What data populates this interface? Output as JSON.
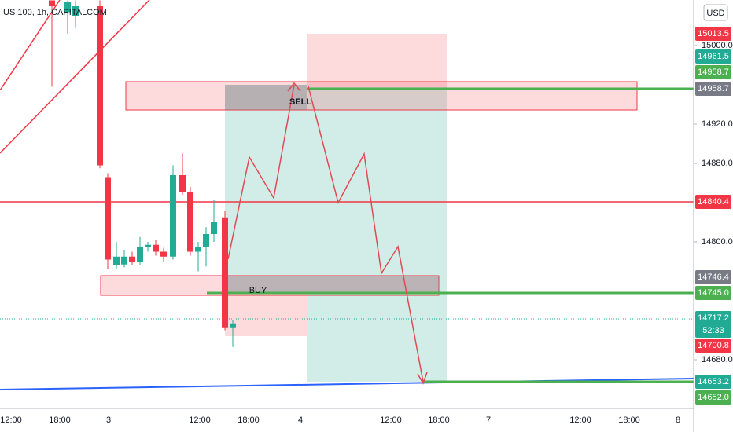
{
  "header": {
    "title": "US 100, 1h, CAPITALCOM"
  },
  "price_axis": {
    "currency": "USD",
    "ticks": [
      {
        "value": 15000,
        "label": "15000.0"
      },
      {
        "value": 14920,
        "label": "14920.0"
      },
      {
        "value": 14880,
        "label": "14880.0"
      },
      {
        "value": 14800,
        "label": "14800.0"
      },
      {
        "value": 14680,
        "label": "14680.0"
      }
    ]
  },
  "price_labels": [
    {
      "value": 15013.5,
      "label": "15013.5",
      "color": "#f23645"
    },
    {
      "value": 14961.5,
      "label": "14961.5",
      "color": "#22ab94"
    },
    {
      "value": 14958.7,
      "label": "14958.7",
      "color": "#4caf50"
    },
    {
      "value": 14958.7,
      "label": "14958.7",
      "color": "#787b86"
    },
    {
      "value": 14840.4,
      "label": "14840.4",
      "color": "#f23645"
    },
    {
      "value": 14746.4,
      "label": "14746.4",
      "color": "#787b86"
    },
    {
      "value": 14745,
      "label": "14745.0",
      "color": "#4caf50"
    },
    {
      "value": 14717.2,
      "label": "14717.2",
      "color": "#22ab94"
    },
    {
      "value": 14700.8,
      "label": "14700.8",
      "color": "#f23645"
    },
    {
      "value": 14653.2,
      "label": "14653.2",
      "color": "#22ab94"
    },
    {
      "value": 14652,
      "label": "14652.0",
      "color": "#4caf50"
    }
  ],
  "countdown": "52:33",
  "time_axis": [
    "12:00",
    "18:00",
    "3",
    "12:00",
    "18:00",
    "4",
    "12:00",
    "18:00",
    "7",
    "12:00",
    "18:00",
    "8"
  ],
  "annotations": {
    "sell": "SELL",
    "buy": "BUY"
  },
  "candles": [
    {
      "open": 15046,
      "high": 15046,
      "low": 14958,
      "close": 15040
    },
    {
      "open": 15034,
      "high": 15046,
      "low": 15012,
      "close": 15044
    },
    {
      "open": 15030,
      "high": 15046,
      "low": 15018,
      "close": 15040
    },
    {
      "open": 15040,
      "high": 15046,
      "low": 14875,
      "close": 14878
    },
    {
      "open": 14866,
      "high": 14870,
      "low": 14772,
      "close": 14782
    },
    {
      "open": 14776,
      "high": 14800,
      "low": 14772,
      "close": 14785
    },
    {
      "open": 14777,
      "high": 14792,
      "low": 14774,
      "close": 14785
    },
    {
      "open": 14785,
      "high": 14790,
      "low": 14776,
      "close": 14780
    },
    {
      "open": 14780,
      "high": 14805,
      "low": 14776,
      "close": 14795
    },
    {
      "open": 14795,
      "high": 14800,
      "low": 14790,
      "close": 14797
    },
    {
      "open": 14797,
      "high": 14802,
      "low": 14786,
      "close": 14790
    },
    {
      "open": 14790,
      "high": 14794,
      "low": 14780,
      "close": 14785
    },
    {
      "open": 14785,
      "high": 14878,
      "low": 14782,
      "close": 14868
    },
    {
      "open": 14868,
      "high": 14890,
      "low": 14848,
      "close": 14851
    },
    {
      "open": 14851,
      "high": 14856,
      "low": 14786,
      "close": 14790
    },
    {
      "open": 14790,
      "high": 14800,
      "low": 14770,
      "close": 14795
    },
    {
      "open": 14795,
      "high": 14815,
      "low": 14775,
      "close": 14808
    },
    {
      "open": 14808,
      "high": 14843,
      "low": 14800,
      "close": 14820
    },
    {
      "open": 14825,
      "high": 14832,
      "low": 14710,
      "close": 14713
    },
    {
      "open": 14713,
      "high": 14720,
      "low": 14693,
      "close": 14717
    }
  ]
}
